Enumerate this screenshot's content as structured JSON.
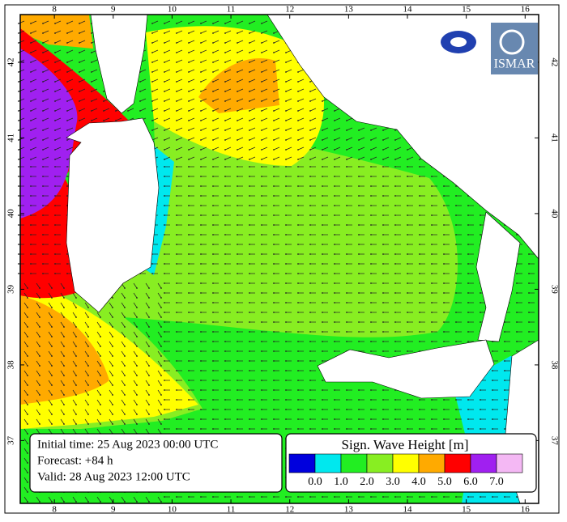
{
  "map": {
    "lon_ticks": [
      8,
      9,
      10,
      11,
      12,
      13,
      14,
      15,
      16
    ],
    "lat_ticks": [
      37,
      38,
      39,
      40,
      41,
      42
    ],
    "xlim": [
      7.42,
      16.23
    ],
    "ylim": [
      36.17,
      42.63
    ],
    "info": {
      "initial": "Initial time: 25 Aug 2023 00:00 UTC",
      "forecast": "Forecast: +84 h",
      "valid": "Valid: 28 Aug 2023 12:00 UTC"
    },
    "legend": {
      "title": "Sign. Wave Height [m]",
      "colors": [
        "#0000dd",
        "#00e8ee",
        "#22ee22",
        "#88ee22",
        "#ffff00",
        "#ffaa00",
        "#ff0000",
        "#a020f0",
        "#f4b8f4"
      ],
      "labels": [
        "0.0",
        "1.0",
        "2.0",
        "3.0",
        "4.0",
        "5.0",
        "6.0",
        "7.0"
      ]
    },
    "logo": "ISMAR"
  }
}
